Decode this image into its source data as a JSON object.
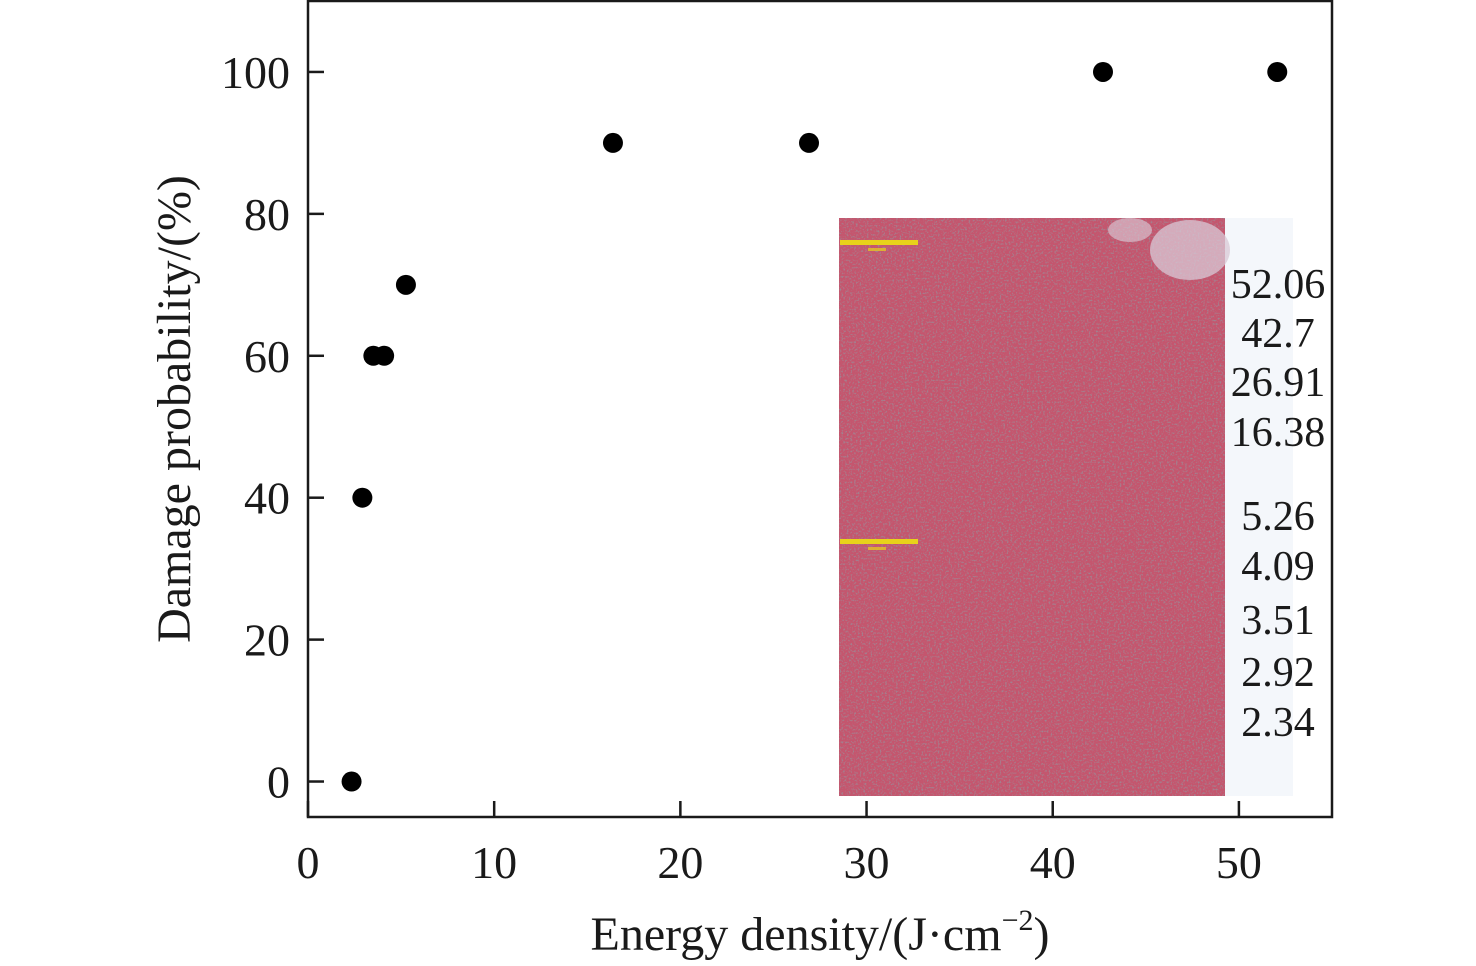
{
  "chart_data": {
    "type": "scatter",
    "xlabel": "Energy density/(J·cm",
    "xlabel_sup": "−2",
    "xlabel_close": ")",
    "ylabel": "Damage probability/(%)",
    "xlim": [
      0,
      55
    ],
    "ylim": [
      -5,
      110
    ],
    "x_ticks": [
      0,
      10,
      20,
      30,
      40,
      50
    ],
    "y_ticks": [
      0,
      20,
      40,
      60,
      80,
      100
    ],
    "grid": false,
    "marker_color": "#000000",
    "series": [
      {
        "points": [
          {
            "x": 2.34,
            "y": 0
          },
          {
            "x": 2.92,
            "y": 40
          },
          {
            "x": 3.51,
            "y": 60
          },
          {
            "x": 4.09,
            "y": 60
          },
          {
            "x": 5.26,
            "y": 70
          },
          {
            "x": 16.38,
            "y": 90
          },
          {
            "x": 26.91,
            "y": 90
          },
          {
            "x": 42.7,
            "y": 100
          },
          {
            "x": 52.06,
            "y": 100
          }
        ]
      }
    ],
    "inset": {
      "description_colors": {
        "base": "#c4566e",
        "dark": "#7d5a6e",
        "light": "#e3d7e6",
        "scale_bar": "#e8d21a"
      },
      "labels": [
        "52.06",
        "42.7",
        "26.91",
        "16.38",
        "5.26",
        "4.09",
        "3.51",
        "2.92",
        "2.34"
      ]
    }
  }
}
